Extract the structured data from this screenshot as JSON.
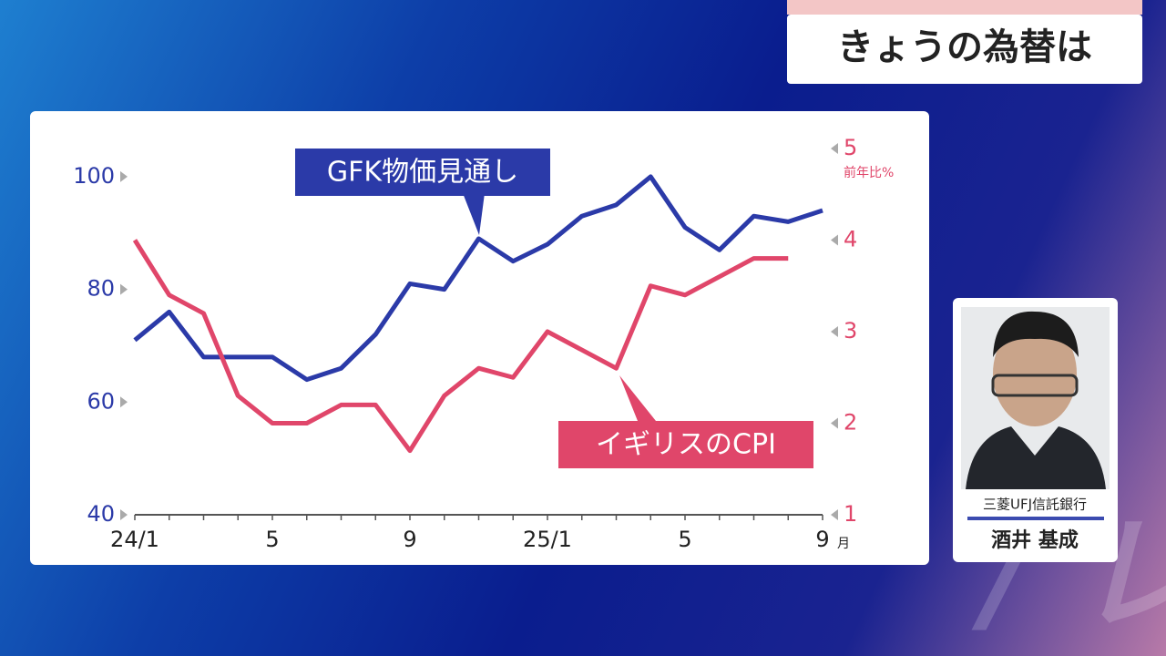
{
  "header": {
    "title": "きょうの為替は"
  },
  "presenter": {
    "organization": "三菱UFJ信託銀行",
    "name": "酒井 基成"
  },
  "chart_data": {
    "type": "line",
    "categories": [
      "24/1",
      null,
      null,
      null,
      "5",
      null,
      null,
      null,
      "9",
      null,
      null,
      null,
      "25/1",
      null,
      null,
      null,
      "5",
      null,
      null,
      null,
      "9"
    ],
    "x_unit": "月",
    "y2_label": "前年比%",
    "ylim": [
      40,
      105
    ],
    "yticks": [
      40,
      60,
      80,
      100
    ],
    "y2lim": [
      1,
      5
    ],
    "y2ticks": [
      1,
      2,
      3,
      4,
      5
    ],
    "series": [
      {
        "name": "GFK物価見通し",
        "color": "#2b3aa8",
        "values": [
          71,
          76,
          68,
          68,
          68,
          64,
          66,
          72,
          81,
          80,
          89,
          85,
          88,
          93,
          95,
          100,
          91,
          87,
          93,
          92,
          94
        ]
      },
      {
        "name": "イギリスのCPI",
        "color": "#e0466a",
        "axis": "y2",
        "values": [
          4.0,
          3.4,
          3.2,
          2.3,
          2.0,
          2.0,
          2.2,
          2.2,
          1.7,
          2.3,
          2.6,
          2.5,
          3.0,
          2.8,
          2.6,
          3.5,
          3.4,
          3.6,
          3.8,
          3.8,
          null
        ]
      }
    ]
  }
}
